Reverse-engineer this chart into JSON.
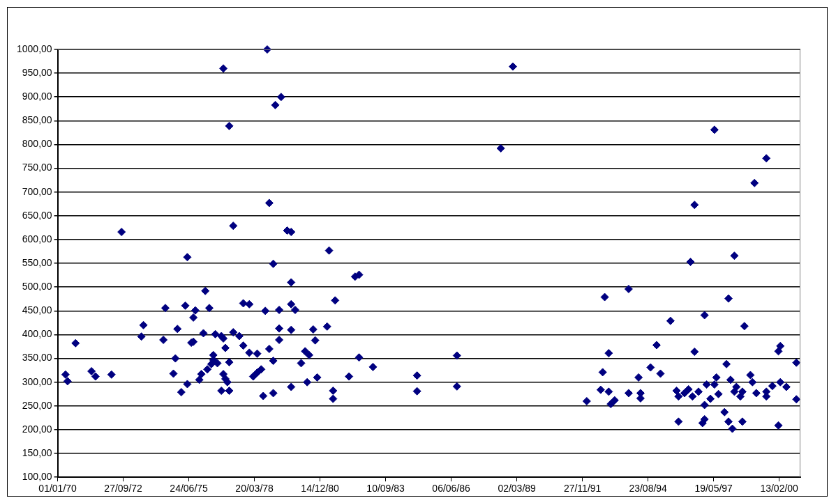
{
  "chart_data": {
    "type": "scatter",
    "series": [
      {
        "color": "#000080",
        "x": [
          "1970-05",
          "1970-06",
          "1970-10",
          "1971-06",
          "1971-08",
          "1972-04",
          "1972-09",
          "1973-07",
          "1973-08",
          "1974-06",
          "1974-07",
          "1974-11",
          "1974-12",
          "1975-01",
          "1975-03",
          "1975-05",
          "1975-06",
          "1975-06",
          "1975-08",
          "1975-09",
          "1975-09",
          "1975-10",
          "1975-12",
          "1976-01",
          "1976-02",
          "1976-03",
          "1976-05",
          "1976-04",
          "1976-06",
          "1976-07",
          "1976-07",
          "1976-08",
          "1976-09",
          "1976-11",
          "1976-11",
          "1976-12",
          "1976-12",
          "1977-01",
          "1977-01",
          "1977-02",
          "1977-03",
          "1977-03",
          "1977-05",
          "1977-08",
          "1977-10",
          "1977-10",
          "1978-01",
          "1978-01",
          "1978-05",
          "1978-03",
          "1978-05",
          "1978-07",
          "1978-08",
          "1978-09",
          "1978-11",
          "1979-01",
          "1979-01",
          "1979-01",
          "1979-04",
          "1979-04",
          "1979-04",
          "1979-10",
          "1979-10",
          "1979-10",
          "1979-10",
          "1979-12",
          "1980-03",
          "1980-05",
          "1980-07",
          "1980-06",
          "1980-09",
          "1980-10",
          "1980-11",
          "1981-04",
          "1981-05",
          "1981-07",
          "1981-07",
          "1981-08",
          "1982-03",
          "1982-06",
          "1982-08",
          "1982-08",
          "1983-03",
          "1976-12",
          "1977-03",
          "1977-05",
          "1978-10",
          "1978-11",
          "1979-02",
          "1979-05",
          "1979-08",
          "1979-10",
          "1985-01",
          "1985-01",
          "1986-09",
          "1986-09",
          "1988-07",
          "1989-01",
          "1997-06",
          "1999-08",
          "1999-02",
          "1996-08",
          "1992-02",
          "1992-09",
          "1992-10",
          "1992-11",
          "1993-01",
          "1993-01",
          "1993-02",
          "1993-04",
          "1993-11",
          "1993-11",
          "1994-04",
          "1994-05",
          "1994-05",
          "1994-10",
          "1995-01",
          "1995-03",
          "1995-08",
          "1995-11",
          "1995-12",
          "1995-12",
          "1996-03",
          "1996-05",
          "1996-06",
          "1996-07",
          "1996-08",
          "1996-10",
          "1996-12",
          "1997-01",
          "1997-01",
          "1997-01",
          "1997-02",
          "1997-04",
          "1997-06",
          "1997-07",
          "1997-08",
          "1997-11",
          "1997-12",
          "1998-01",
          "1998-01",
          "1998-02",
          "1998-03",
          "1998-04",
          "1998-04",
          "1998-05",
          "1998-07",
          "1998-08",
          "1998-08",
          "1998-09",
          "1998-12",
          "1999-01",
          "1999-03",
          "1999-08",
          "1999-08",
          "1999-11",
          "2000-02",
          "2000-02",
          "2000-03",
          "2000-03",
          "2000-06",
          "2000-11",
          "2000-11"
        ],
        "values": [
          316,
          302,
          382,
          323,
          312,
          316,
          616,
          396,
          420,
          389,
          456,
          318,
          350,
          412,
          279,
          461,
          563,
          296,
          383,
          385,
          436,
          451,
          305,
          317,
          403,
          492,
          456,
          327,
          338,
          357,
          347,
          401,
          340,
          397,
          282,
          317,
          392,
          372,
          307,
          300,
          282,
          342,
          405,
          397,
          377,
          466,
          464,
          362,
          360,
          312,
          320,
          327,
          271,
          450,
          370,
          277,
          549,
          345,
          452,
          413,
          389,
          464,
          290,
          510,
          410,
          452,
          340,
          365,
          357,
          300,
          411,
          388,
          310,
          417,
          577,
          282,
          265,
          472,
          312,
          522,
          526,
          352,
          332,
          960,
          839,
          629,
          1000,
          677,
          883,
          900,
          619,
          616,
          314,
          281,
          356,
          291,
          792,
          964,
          831,
          771,
          719,
          673,
          260,
          284,
          321,
          479,
          280,
          361,
          254,
          262,
          496,
          277,
          310,
          277,
          266,
          331,
          378,
          318,
          429,
          282,
          217,
          270,
          277,
          285,
          553,
          270,
          364,
          280,
          214,
          441,
          222,
          252,
          295,
          265,
          295,
          310,
          275,
          237,
          338,
          476,
          217,
          305,
          202,
          280,
          566,
          290,
          270,
          217,
          280,
          418,
          315,
          300,
          277,
          270,
          280,
          292,
          209,
          365,
          376,
          300,
          290,
          341,
          264
        ]
      }
    ],
    "xlim": [
      "1970-01-01",
      "2001-01-01"
    ],
    "xticks": [
      {
        "value": "1970-01-01",
        "label": "01/01/70"
      },
      {
        "value": "1972-09-27",
        "label": "27/09/72"
      },
      {
        "value": "1975-06-24",
        "label": "24/06/75"
      },
      {
        "value": "1978-03-20",
        "label": "20/03/78"
      },
      {
        "value": "1980-12-14",
        "label": "14/12/80"
      },
      {
        "value": "1983-09-10",
        "label": "10/09/83"
      },
      {
        "value": "1986-06-06",
        "label": "06/06/86"
      },
      {
        "value": "1989-03-02",
        "label": "02/03/89"
      },
      {
        "value": "1991-11-27",
        "label": "27/11/91"
      },
      {
        "value": "1994-08-23",
        "label": "23/08/94"
      },
      {
        "value": "1997-05-19",
        "label": "19/05/97"
      },
      {
        "value": "2000-02-13",
        "label": "13/02/00"
      }
    ],
    "ylim": [
      100,
      1000
    ],
    "yticks": [
      {
        "value": 100,
        "label": "100,00"
      },
      {
        "value": 150,
        "label": "150,00"
      },
      {
        "value": 200,
        "label": "200,00"
      },
      {
        "value": 250,
        "label": "250,00"
      },
      {
        "value": 300,
        "label": "300,00"
      },
      {
        "value": 350,
        "label": "350,00"
      },
      {
        "value": 400,
        "label": "400,00"
      },
      {
        "value": 450,
        "label": "450,00"
      },
      {
        "value": 500,
        "label": "500,00"
      },
      {
        "value": 550,
        "label": "550,00"
      },
      {
        "value": 600,
        "label": "600,00"
      },
      {
        "value": 650,
        "label": "650,00"
      },
      {
        "value": 700,
        "label": "700,00"
      },
      {
        "value": 750,
        "label": "750,00"
      },
      {
        "value": 800,
        "label": "800,00"
      },
      {
        "value": 850,
        "label": "850,00"
      },
      {
        "value": 900,
        "label": "900,00"
      },
      {
        "value": 950,
        "label": "950,00"
      },
      {
        "value": 1000,
        "label": "1000,00"
      }
    ],
    "grid": "y",
    "legend": false,
    "marker": "diamond"
  }
}
